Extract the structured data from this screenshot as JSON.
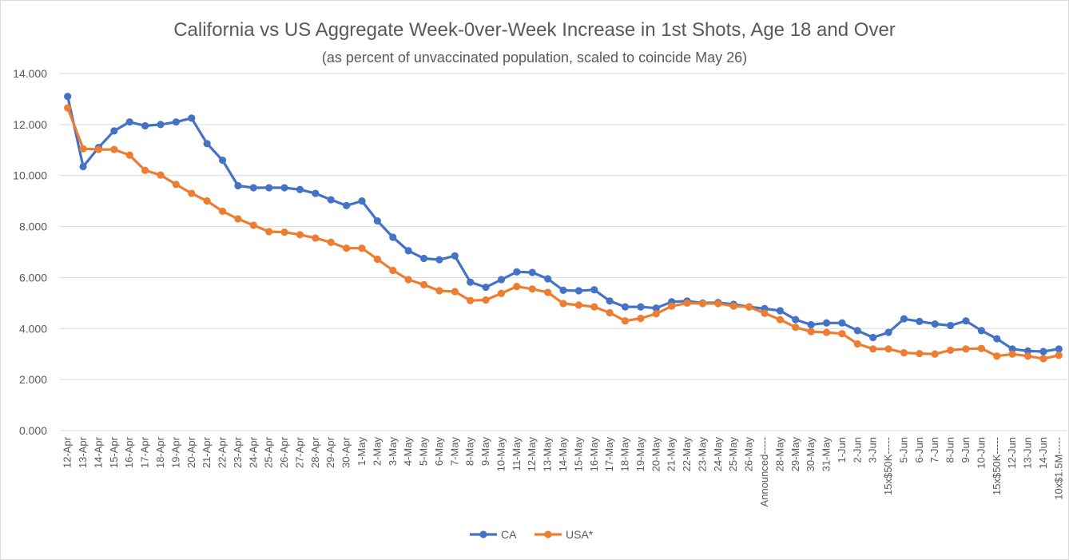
{
  "chart_data": {
    "type": "line",
    "title": "California vs US Aggregate Week-0ver-Week  Increase in 1st Shots, Age 18 and Over",
    "subtitle": "(as percent of unvaccinated population, scaled to coincide May 26)",
    "xlabel": "",
    "ylabel": "",
    "ylim": [
      0,
      14
    ],
    "yticks": [
      "0.000",
      "2.000",
      "4.000",
      "6.000",
      "8.000",
      "10.000",
      "12.000",
      "14.000"
    ],
    "grid": true,
    "legend_position": "bottom",
    "categories": [
      "12-Apr",
      "13-Apr",
      "14-Apr",
      "15-Apr",
      "16-Apr",
      "17-Apr",
      "18-Apr",
      "19-Apr",
      "20-Apr",
      "21-Apr",
      "22-Apr",
      "23-Apr",
      "24-Apr",
      "25-Apr",
      "26-Apr",
      "27-Apr",
      "28-Apr",
      "29-Apr",
      "30-Apr",
      "1-May",
      "2-May",
      "3-May",
      "4-May",
      "5-May",
      "6-May",
      "7-May",
      "8-May",
      "9-May",
      "10-May",
      "11-May",
      "12-May",
      "13-May",
      "14-May",
      "15-May",
      "16-May",
      "17-May",
      "18-May",
      "19-May",
      "20-May",
      "21-May",
      "22-May",
      "23-May",
      "24-May",
      "25-May",
      "26-May",
      "Announced-----",
      "28-May",
      "29-May",
      "30-May",
      "31-May",
      "1-Jun",
      "2-Jun",
      "3-Jun",
      "15x$50K-----",
      "5-Jun",
      "6-Jun",
      "7-Jun",
      "8-Jun",
      "9-Jun",
      "10-Jun",
      "15x$50K-----",
      "12-Jun",
      "13-Jun",
      "14-Jun",
      "10x$1.5M-----"
    ],
    "series": [
      {
        "name": "CA",
        "color": "#4472C4",
        "values": [
          13.1,
          10.35,
          11.1,
          11.75,
          12.1,
          11.95,
          12.0,
          12.1,
          12.25,
          11.25,
          10.6,
          9.6,
          9.52,
          9.52,
          9.52,
          9.45,
          9.3,
          9.05,
          8.82,
          9.0,
          8.22,
          7.58,
          7.05,
          6.75,
          6.7,
          6.85,
          5.82,
          5.62,
          5.92,
          6.22,
          6.2,
          5.95,
          5.5,
          5.48,
          5.52,
          5.08,
          4.85,
          4.85,
          4.8,
          5.05,
          5.08,
          5.0,
          5.02,
          4.95,
          4.85,
          4.78,
          4.7,
          4.35,
          4.15,
          4.22,
          4.22,
          3.92,
          3.65,
          3.85,
          4.38,
          4.28,
          4.18,
          4.12,
          4.3,
          3.92,
          3.6,
          3.2,
          3.12,
          3.1,
          3.2
        ]
      },
      {
        "name": "USA*",
        "color": "#ED7D31",
        "values": [
          12.65,
          11.05,
          11.02,
          11.02,
          10.8,
          10.2,
          10.02,
          9.65,
          9.3,
          9.0,
          8.6,
          8.3,
          8.05,
          7.8,
          7.78,
          7.68,
          7.55,
          7.38,
          7.15,
          7.15,
          6.72,
          6.28,
          5.92,
          5.72,
          5.48,
          5.45,
          5.1,
          5.12,
          5.38,
          5.65,
          5.55,
          5.42,
          4.98,
          4.92,
          4.85,
          4.62,
          4.3,
          4.4,
          4.58,
          4.88,
          5.0,
          4.98,
          4.98,
          4.88,
          4.85,
          4.6,
          4.35,
          4.05,
          3.88,
          3.85,
          3.8,
          3.4,
          3.2,
          3.2,
          3.05,
          3.02,
          3.0,
          3.15,
          3.2,
          3.22,
          2.92,
          3.0,
          2.92,
          2.82,
          2.95
        ]
      }
    ]
  }
}
